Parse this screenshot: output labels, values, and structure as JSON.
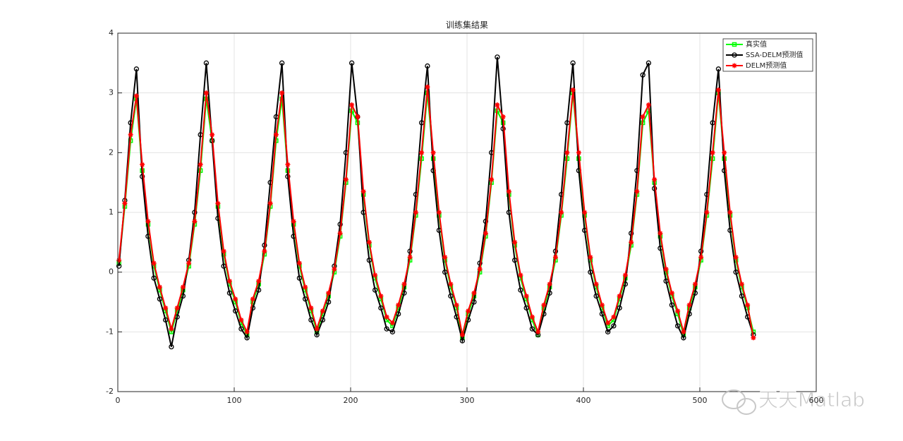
{
  "chart_data": {
    "type": "line",
    "title": "训练集结果",
    "x": [
      1,
      6,
      11,
      16,
      21,
      26,
      31,
      36,
      41,
      46,
      51,
      56,
      61,
      66,
      71,
      76,
      81,
      86,
      91,
      96,
      101,
      106,
      111,
      116,
      121,
      126,
      131,
      136,
      141,
      146,
      151,
      156,
      161,
      166,
      171,
      176,
      181,
      186,
      191,
      196,
      201,
      206,
      211,
      216,
      221,
      226,
      231,
      236,
      241,
      246,
      251,
      256,
      261,
      266,
      271,
      276,
      281,
      286,
      291,
      296,
      301,
      306,
      311,
      316,
      321,
      326,
      331,
      336,
      341,
      346,
      351,
      356,
      361,
      366,
      371,
      376,
      381,
      386,
      391,
      396,
      401,
      406,
      411,
      416,
      421,
      426,
      431,
      436,
      441,
      446,
      451,
      456,
      461,
      466,
      471,
      476,
      481,
      486,
      491,
      496,
      501,
      506,
      511,
      516,
      521,
      526,
      531,
      536,
      541,
      546
    ],
    "series": [
      {
        "name": "真实值",
        "color": "#00ff00",
        "marker": "square",
        "values": [
          0.15,
          1.1,
          2.2,
          2.9,
          1.7,
          0.8,
          0.1,
          -0.3,
          -0.65,
          -1.0,
          -0.65,
          -0.3,
          0.1,
          0.8,
          1.7,
          2.9,
          2.2,
          1.1,
          0.3,
          -0.2,
          -0.5,
          -0.85,
          -1.05,
          -0.5,
          -0.2,
          0.3,
          1.1,
          2.2,
          2.9,
          1.7,
          0.8,
          0.1,
          -0.3,
          -0.65,
          -1.0,
          -0.7,
          -0.4,
          0.0,
          0.6,
          1.5,
          2.7,
          2.5,
          1.3,
          0.45,
          -0.1,
          -0.45,
          -0.8,
          -0.9,
          -0.6,
          -0.25,
          0.2,
          0.95,
          1.9,
          3.0,
          1.9,
          0.95,
          0.2,
          -0.25,
          -0.6,
          -1.1,
          -0.7,
          -0.4,
          0.0,
          0.6,
          1.5,
          2.7,
          2.5,
          1.3,
          0.45,
          -0.1,
          -0.45,
          -0.8,
          -1.05,
          -0.6,
          -0.25,
          0.2,
          0.95,
          1.9,
          3.0,
          1.9,
          0.95,
          0.2,
          -0.25,
          -0.6,
          -0.9,
          -0.8,
          -0.45,
          -0.1,
          0.45,
          1.3,
          2.5,
          2.7,
          1.5,
          0.6,
          0.0,
          -0.4,
          -0.7,
          -1.05,
          -0.6,
          -0.25,
          0.2,
          0.95,
          1.9,
          3.0,
          1.9,
          0.95,
          0.2,
          -0.25,
          -0.6,
          -1.0
        ]
      },
      {
        "name": "SSA-DELM预测值",
        "color": "#000000",
        "marker": "circle",
        "values": [
          0.1,
          1.2,
          2.5,
          3.4,
          1.6,
          0.6,
          -0.1,
          -0.45,
          -0.8,
          -1.25,
          -0.75,
          -0.4,
          0.2,
          1.0,
          2.3,
          3.5,
          2.2,
          0.9,
          0.1,
          -0.35,
          -0.65,
          -0.95,
          -1.1,
          -0.6,
          -0.3,
          0.45,
          1.5,
          2.6,
          3.5,
          1.6,
          0.6,
          -0.1,
          -0.45,
          -0.8,
          -1.05,
          -0.8,
          -0.5,
          0.1,
          0.8,
          2.0,
          3.5,
          2.6,
          1.0,
          0.2,
          -0.3,
          -0.6,
          -0.95,
          -1.0,
          -0.7,
          -0.35,
          0.35,
          1.3,
          2.5,
          3.45,
          1.7,
          0.7,
          0.0,
          -0.4,
          -0.75,
          -1.15,
          -0.8,
          -0.5,
          0.15,
          0.85,
          2.0,
          3.6,
          2.4,
          1.0,
          0.2,
          -0.3,
          -0.6,
          -0.95,
          -1.05,
          -0.7,
          -0.35,
          0.35,
          1.3,
          2.5,
          3.5,
          1.7,
          0.7,
          0.0,
          -0.4,
          -0.7,
          -1.0,
          -0.9,
          -0.6,
          -0.2,
          0.65,
          1.7,
          3.3,
          3.5,
          1.4,
          0.4,
          -0.15,
          -0.55,
          -0.9,
          -1.1,
          -0.7,
          -0.35,
          0.35,
          1.3,
          2.5,
          3.4,
          1.7,
          0.7,
          0.0,
          -0.4,
          -0.75,
          -1.05
        ]
      },
      {
        "name": "DELM预测值",
        "color": "#ff0000",
        "marker": "asterisk",
        "values": [
          0.2,
          1.15,
          2.3,
          2.95,
          1.8,
          0.85,
          0.15,
          -0.25,
          -0.6,
          -0.95,
          -0.6,
          -0.25,
          0.15,
          0.85,
          1.8,
          3.0,
          2.3,
          1.15,
          0.35,
          -0.15,
          -0.45,
          -0.8,
          -1.0,
          -0.45,
          -0.15,
          0.35,
          1.15,
          2.3,
          3.0,
          1.8,
          0.85,
          0.15,
          -0.25,
          -0.6,
          -0.95,
          -0.65,
          -0.35,
          0.05,
          0.65,
          1.55,
          2.8,
          2.6,
          1.35,
          0.5,
          -0.05,
          -0.4,
          -0.75,
          -0.85,
          -0.55,
          -0.2,
          0.25,
          1.0,
          2.0,
          3.1,
          2.0,
          1.0,
          0.25,
          -0.2,
          -0.55,
          -1.05,
          -0.65,
          -0.35,
          0.05,
          0.65,
          1.55,
          2.8,
          2.6,
          1.35,
          0.5,
          -0.05,
          -0.4,
          -0.75,
          -1.0,
          -0.55,
          -0.2,
          0.25,
          1.0,
          2.0,
          3.05,
          2.0,
          1.0,
          0.25,
          -0.2,
          -0.55,
          -0.85,
          -0.75,
          -0.4,
          -0.05,
          0.5,
          1.35,
          2.6,
          2.8,
          1.55,
          0.65,
          0.05,
          -0.35,
          -0.65,
          -1.0,
          -0.55,
          -0.2,
          0.25,
          1.0,
          2.0,
          3.05,
          2.0,
          1.0,
          0.25,
          -0.2,
          -0.55,
          -1.1
        ]
      }
    ],
    "xlim": [
      0,
      600
    ],
    "xticks": [
      0,
      100,
      200,
      300,
      400,
      500,
      600
    ],
    "ylim": [
      -2,
      4
    ],
    "yticks": [
      -2,
      -1,
      0,
      1,
      2,
      3,
      4
    ],
    "grid": true,
    "legend": "upper right",
    "watermark": "天天Matlab"
  }
}
